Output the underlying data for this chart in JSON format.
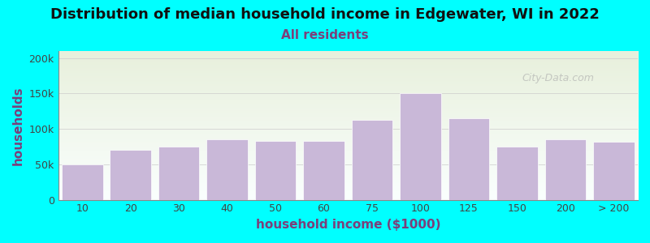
{
  "title": "Distribution of median household income in Edgewater, WI in 2022",
  "subtitle": "All residents",
  "xlabel": "household income ($1000)",
  "ylabel": "households",
  "background_color": "#00FFFF",
  "bar_color": "#C9B8D8",
  "bar_edgecolor": "#FFFFFF",
  "categories": [
    "10",
    "20",
    "30",
    "40",
    "50",
    "60",
    "75",
    "100",
    "125",
    "150",
    "200",
    "> 200"
  ],
  "values": [
    50000,
    70000,
    75000,
    85000,
    83000,
    83000,
    113000,
    150000,
    115000,
    75000,
    85000,
    82000
  ],
  "ylim": [
    0,
    210000
  ],
  "yticks": [
    0,
    50000,
    100000,
    150000,
    200000
  ],
  "ytick_labels": [
    "0",
    "50k",
    "100k",
    "150k",
    "200k"
  ],
  "title_fontsize": 13,
  "subtitle_fontsize": 11,
  "axis_label_fontsize": 11,
  "watermark": "City-Data.com",
  "plot_bg_top": "#E8F0DC",
  "plot_bg_bottom": "#FAFFFE"
}
